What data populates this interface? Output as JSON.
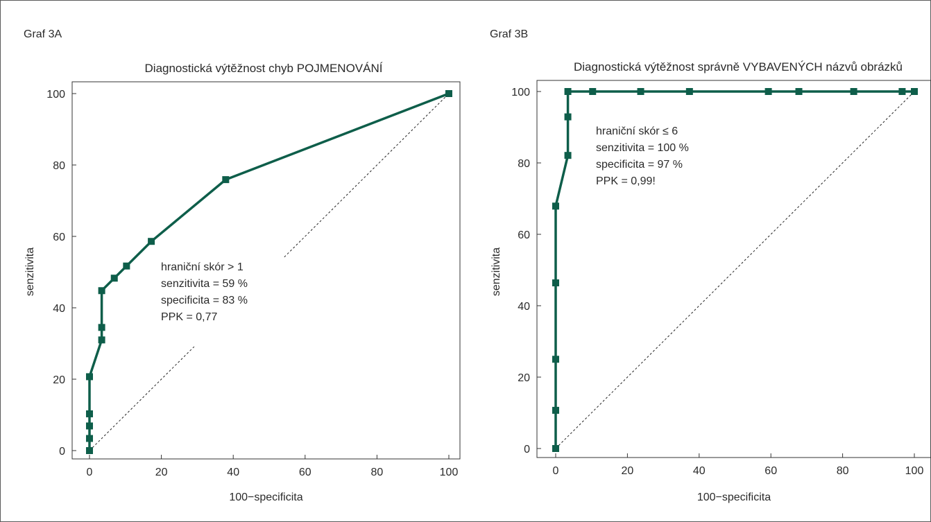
{
  "figure": {
    "colors": {
      "series": "#0e5e4a",
      "axis": "#333333",
      "text": "#2a2a2a",
      "frame": "#5a5a5a"
    }
  },
  "chart_data": [
    {
      "panel_label": "Graf 3A",
      "type": "line",
      "title": "Diagnostická výtěžnost chyb POJMENOVÁNÍ",
      "xlabel": "100−specificita",
      "ylabel": "senzitivita",
      "xlim": [
        0,
        100
      ],
      "ylim": [
        0,
        100
      ],
      "xticks": [
        "0",
        "20",
        "40",
        "60",
        "80",
        "100"
      ],
      "yticks": [
        "0",
        "20",
        "40",
        "60",
        "80",
        "100"
      ],
      "grid": false,
      "reference_line": "diagonal",
      "series": [
        {
          "x": [
            0,
            0,
            0,
            0,
            0,
            3.4,
            3.4,
            3.4,
            6.9,
            10.3,
            17.2,
            37.9,
            100
          ],
          "y": [
            0,
            3.4,
            6.9,
            10.3,
            20.7,
            31,
            34.5,
            44.8,
            48.3,
            51.7,
            58.6,
            75.9,
            100
          ]
        }
      ],
      "annotations": [
        "hraniční skór > 1",
        "senzitivita = 59 %",
        "specificita = 83 %",
        "PPK = 0,77"
      ]
    },
    {
      "panel_label": "Graf 3B",
      "type": "line",
      "title": "Diagnostická výtěžnost správně VYBAVENÝCH názvů obrázků",
      "xlabel": "100−specificita",
      "ylabel": "senzitivita",
      "xlim": [
        0,
        100
      ],
      "ylim": [
        0,
        100
      ],
      "xticks": [
        "0",
        "20",
        "40",
        "60",
        "80",
        "100"
      ],
      "yticks": [
        "0",
        "20",
        "40",
        "60",
        "80",
        "100"
      ],
      "grid": false,
      "reference_line": "diagonal",
      "series": [
        {
          "x": [
            0,
            0,
            0,
            0,
            0,
            3.4,
            3.4,
            3.4,
            10.3,
            23.7,
            37.3,
            59.3,
            67.8,
            83.1,
            96.6,
            100
          ],
          "y": [
            0,
            10.7,
            25,
            46.4,
            67.9,
            82.1,
            92.9,
            100,
            100,
            100,
            100,
            100,
            100,
            100,
            100,
            100
          ]
        }
      ],
      "annotations": [
        "hraniční skór ≤ 6",
        "senzitivita = 100 %",
        "specificita = 97  %",
        "PPK = 0,99!"
      ]
    }
  ]
}
